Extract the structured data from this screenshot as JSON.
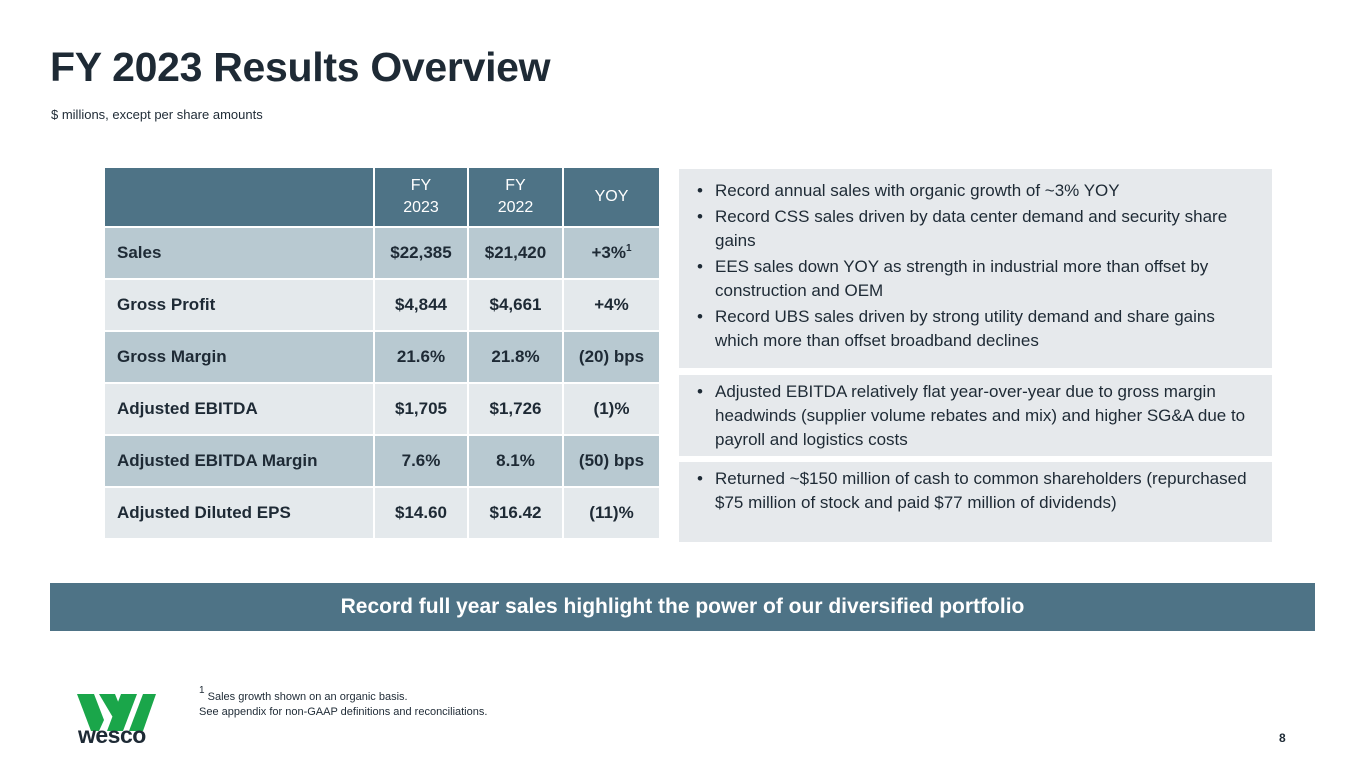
{
  "title": "FY 2023 Results Overview",
  "subtitle": "$ millions, except per share amounts",
  "table": {
    "headers": {
      "fy2023_line1": "FY",
      "fy2023_line2": "2023",
      "fy2022_line1": "FY",
      "fy2022_line2": "2022",
      "yoy": "YOY"
    },
    "rows": [
      {
        "label": "Sales",
        "fy2023": "$22,385",
        "fy2022": "$21,420",
        "yoy": "+3%",
        "yoy_sup": "1"
      },
      {
        "label": "Gross Profit",
        "fy2023": "$4,844",
        "fy2022": "$4,661",
        "yoy": "+4%"
      },
      {
        "label": "Gross Margin",
        "fy2023": "21.6%",
        "fy2022": "21.8%",
        "yoy": "(20) bps"
      },
      {
        "label": "Adjusted EBITDA",
        "fy2023": "$1,705",
        "fy2022": "$1,726",
        "yoy": "(1)%"
      },
      {
        "label": "Adjusted EBITDA Margin",
        "fy2023": "7.6%",
        "fy2022": "8.1%",
        "yoy": "(50) bps"
      },
      {
        "label": "Adjusted Diluted EPS",
        "fy2023": "$14.60",
        "fy2022": "$16.42",
        "yoy": "(11)%"
      }
    ]
  },
  "panels": {
    "sales": [
      "Record annual sales with organic growth of ~3% YOY",
      "Record CSS sales driven by data center demand and security share gains",
      "EES sales down YOY as strength in industrial more than offset by construction and OEM",
      "Record UBS sales driven by strong utility demand and share gains which more than offset broadband declines"
    ],
    "ebitda": [
      "Adjusted EBITDA relatively flat year-over-year due to gross margin headwinds (supplier volume rebates and mix) and higher SG&A due to payroll and logistics costs"
    ],
    "cash": [
      "Returned ~$150 million of cash to common shareholders (repurchased $75 million of stock and paid $77 million of dividends)"
    ]
  },
  "banner": "Record full year sales highlight the power of our diversified portfolio",
  "footnote": {
    "sup": "1",
    "line1": "Sales growth shown on an organic basis.",
    "line2": "See appendix for non-GAAP definitions and reconciliations."
  },
  "logo_text": "wesco",
  "page_number": "8",
  "colors": {
    "header_blue": "#4e7386",
    "row_shade": "#b8c9d1",
    "row_light": "#e4e9ec",
    "panel_bg": "#e6e9ec",
    "logo_green": "#1aa64a"
  }
}
